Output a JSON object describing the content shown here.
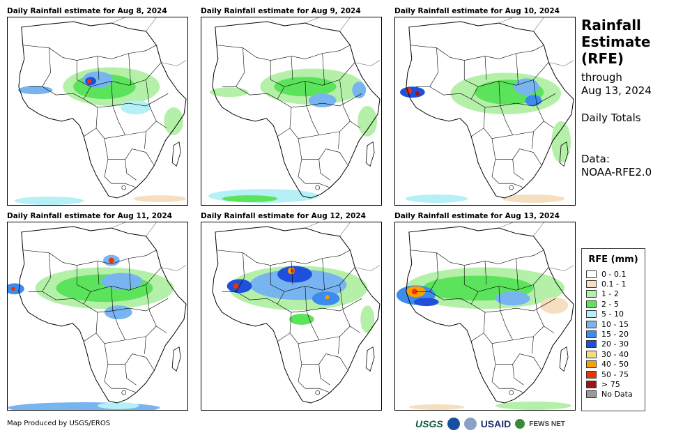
{
  "panels": [
    {
      "title": "Daily Rainfall estimate for Aug 8, 2024"
    },
    {
      "title": "Daily Rainfall estimate for Aug 9, 2024"
    },
    {
      "title": "Daily Rainfall estimate for Aug 10, 2024"
    },
    {
      "title": "Daily Rainfall estimate for Aug 11, 2024"
    },
    {
      "title": "Daily Rainfall estimate for Aug 12, 2024"
    },
    {
      "title": "Daily Rainfall estimate for Aug 13, 2024"
    }
  ],
  "side": {
    "title_line1": "Rainfall",
    "title_line2": "Estimate",
    "title_line3": "(RFE)",
    "through_label": "through",
    "through_date": "Aug 13, 2024",
    "totals": "Daily Totals",
    "data_label": "Data:",
    "data_source": "NOAA-RFE2.0"
  },
  "legend": {
    "title": "RFE (mm)",
    "items": [
      {
        "label": "0 - 0.1",
        "color": "#ffffff"
      },
      {
        "label": "0.1 - 1",
        "color": "#f5dfc0"
      },
      {
        "label": "1 - 2",
        "color": "#b4f0a8"
      },
      {
        "label": "2 - 5",
        "color": "#5ce35c"
      },
      {
        "label": "5 - 10",
        "color": "#b4f0f5"
      },
      {
        "label": "10 - 15",
        "color": "#78b4f0"
      },
      {
        "label": "15 - 20",
        "color": "#3c8cf0"
      },
      {
        "label": "20 - 30",
        "color": "#1e50dc"
      },
      {
        "label": "30 - 40",
        "color": "#f5dc82"
      },
      {
        "label": "40 - 50",
        "color": "#f5a000"
      },
      {
        "label": "50 - 75",
        "color": "#f03200"
      },
      {
        "label": "> 75",
        "color": "#a01414"
      },
      {
        "label": "No Data",
        "color": "#9a9a9a"
      }
    ]
  },
  "credit": "Map Produced by USGS/EROS",
  "logos": {
    "usgs": "USGS",
    "usaid": "USAID",
    "fews": "FEWS NET"
  }
}
